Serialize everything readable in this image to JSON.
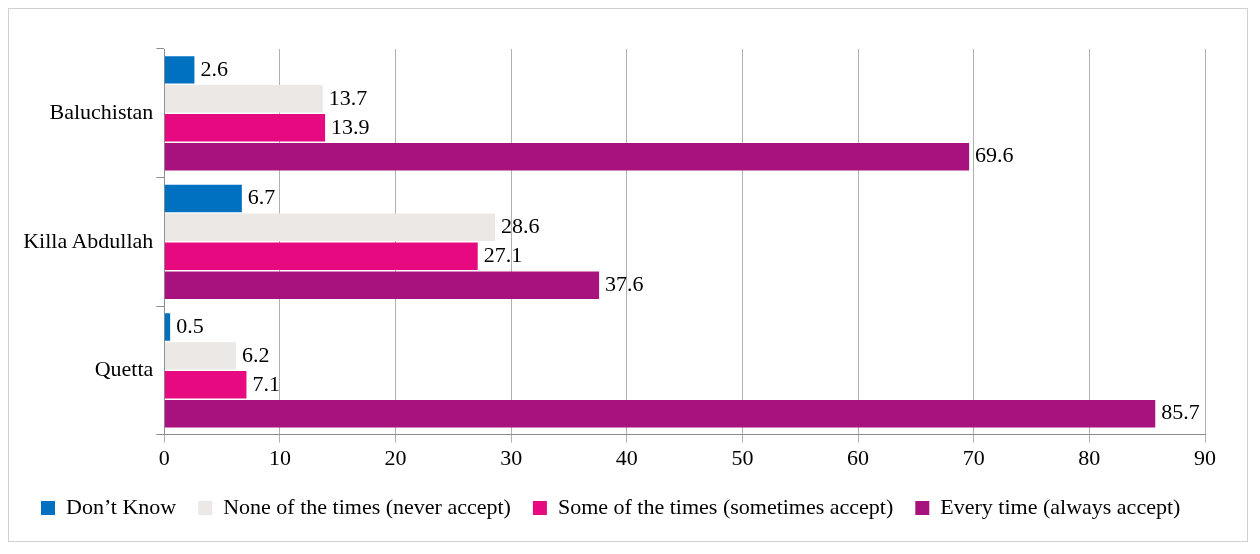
{
  "chart_data": {
    "type": "bar",
    "orientation": "horizontal",
    "categories": [
      "Baluchistan",
      "Killa Abdullah",
      "Quetta"
    ],
    "series": [
      {
        "name": "Don’t Know",
        "color": "#0070c0",
        "values": [
          2.6,
          6.7,
          0.5
        ]
      },
      {
        "name": "None of the times (never accept)",
        "color": "#ebe8e6",
        "values": [
          13.7,
          28.6,
          6.2
        ]
      },
      {
        "name": "Some of the times (sometimes accept)",
        "color": "#e6097f",
        "values": [
          13.9,
          27.1,
          7.1
        ]
      },
      {
        "name": "Every time (always accept)",
        "color": "#a8127e",
        "values": [
          69.6,
          37.6,
          85.7
        ]
      }
    ],
    "xlim": [
      0,
      90
    ],
    "xticks": [
      0,
      10,
      20,
      30,
      40,
      50,
      60,
      70,
      80,
      90
    ],
    "grid": "x",
    "legend": "bottom",
    "data_labels": true
  }
}
